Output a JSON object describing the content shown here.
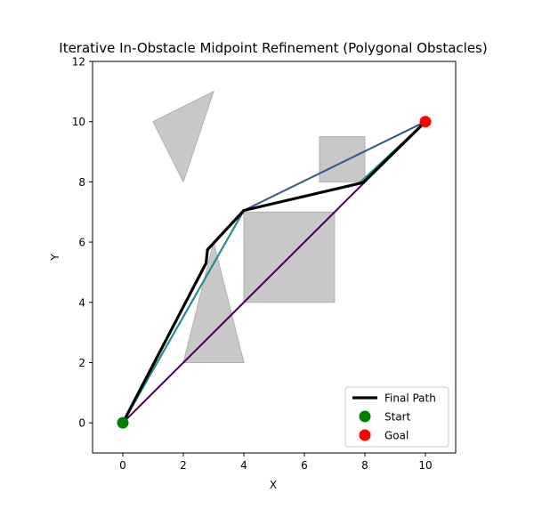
{
  "chart_data": {
    "type": "line",
    "title": "Iterative In-Obstacle Midpoint Refinement (Polygonal Obstacles)",
    "xlabel": "X",
    "ylabel": "Y",
    "xlim": [
      -1,
      11
    ],
    "ylim": [
      -1,
      12
    ],
    "xticks": [
      0,
      2,
      4,
      6,
      8,
      10
    ],
    "yticks": [
      0,
      2,
      4,
      6,
      8,
      10,
      12
    ],
    "grid": false,
    "legend_position": "lower-right",
    "obstacles": [
      {
        "name": "triangle-top",
        "points": [
          [
            1,
            10
          ],
          [
            3,
            11
          ],
          [
            2,
            8
          ]
        ]
      },
      {
        "name": "triangle-bottom",
        "points": [
          [
            2,
            2
          ],
          [
            4,
            2
          ],
          [
            3,
            6
          ]
        ]
      },
      {
        "name": "square-large",
        "points": [
          [
            4,
            4
          ],
          [
            7,
            4
          ],
          [
            7,
            7
          ],
          [
            4,
            7
          ]
        ]
      },
      {
        "name": "square-small",
        "points": [
          [
            6.5,
            8
          ],
          [
            8,
            8
          ],
          [
            8,
            9.5
          ],
          [
            6.5,
            9.5
          ]
        ]
      }
    ],
    "obstacle_color": "#c8c8c8",
    "iterations": [
      {
        "color": "#440154",
        "points": [
          [
            0,
            0
          ],
          [
            8,
            8
          ],
          [
            10,
            10
          ]
        ]
      },
      {
        "color": "#3b528b",
        "points": [
          [
            0,
            0
          ],
          [
            4,
            7.05
          ],
          [
            10,
            10
          ]
        ]
      },
      {
        "color": "#21918c",
        "points": [
          [
            0,
            0
          ],
          [
            4,
            7.05
          ],
          [
            7.8,
            7.95
          ],
          [
            10,
            10
          ]
        ]
      }
    ],
    "series": [
      {
        "name": "Final Path",
        "color": "#000000",
        "points": [
          [
            0,
            0
          ],
          [
            2.75,
            5.3
          ],
          [
            2.8,
            5.75
          ],
          [
            4,
            7.05
          ],
          [
            7.95,
            7.98
          ],
          [
            10,
            10
          ]
        ]
      }
    ],
    "markers": [
      {
        "name": "Start",
        "color": "#008000",
        "point": [
          0,
          0
        ]
      },
      {
        "name": "Goal",
        "color": "#ff0000",
        "point": [
          10,
          10
        ]
      }
    ],
    "legend": [
      {
        "label": "Final Path",
        "kind": "line",
        "color": "#000000"
      },
      {
        "label": "Start",
        "kind": "marker",
        "color": "#008000"
      },
      {
        "label": "Goal",
        "kind": "marker",
        "color": "#ff0000"
      }
    ]
  }
}
